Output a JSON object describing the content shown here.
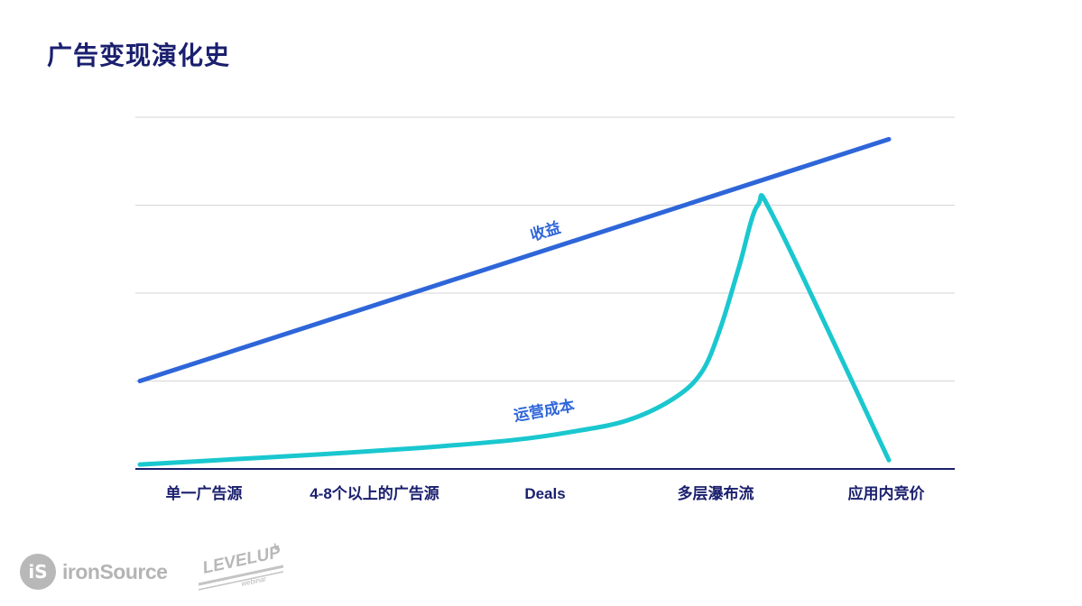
{
  "page": {
    "title": "广告变现演化史"
  },
  "chart_data": {
    "type": "line",
    "categories": [
      "单一广告源",
      "4-8个以上的广告源",
      "Deals",
      "多层瀑布流",
      "应用内竞价"
    ],
    "ylim": [
      0,
      4
    ],
    "grid": true,
    "series": [
      {
        "name": "收益",
        "color": "#2e66d9",
        "x": [
          0.0,
          4.0
        ],
        "y": [
          1.0,
          3.75
        ]
      },
      {
        "name": "运营成本",
        "color": "#1ac7cf",
        "x": [
          0.0,
          0.5,
          1.0,
          1.5,
          2.0,
          2.3,
          2.6,
          2.85,
          3.0,
          3.1,
          3.2,
          3.3,
          3.4,
          4.0
        ],
        "y": [
          0.05,
          0.11,
          0.17,
          0.24,
          0.33,
          0.42,
          0.55,
          0.8,
          1.1,
          1.6,
          2.3,
          3.0,
          2.8,
          0.1
        ]
      }
    ]
  },
  "footer": {
    "brand_mark": "iS",
    "brand_name": "ironSource",
    "levelup": "LEVELUP",
    "levelup_plus": "+",
    "levelup_sub": "webinar"
  }
}
